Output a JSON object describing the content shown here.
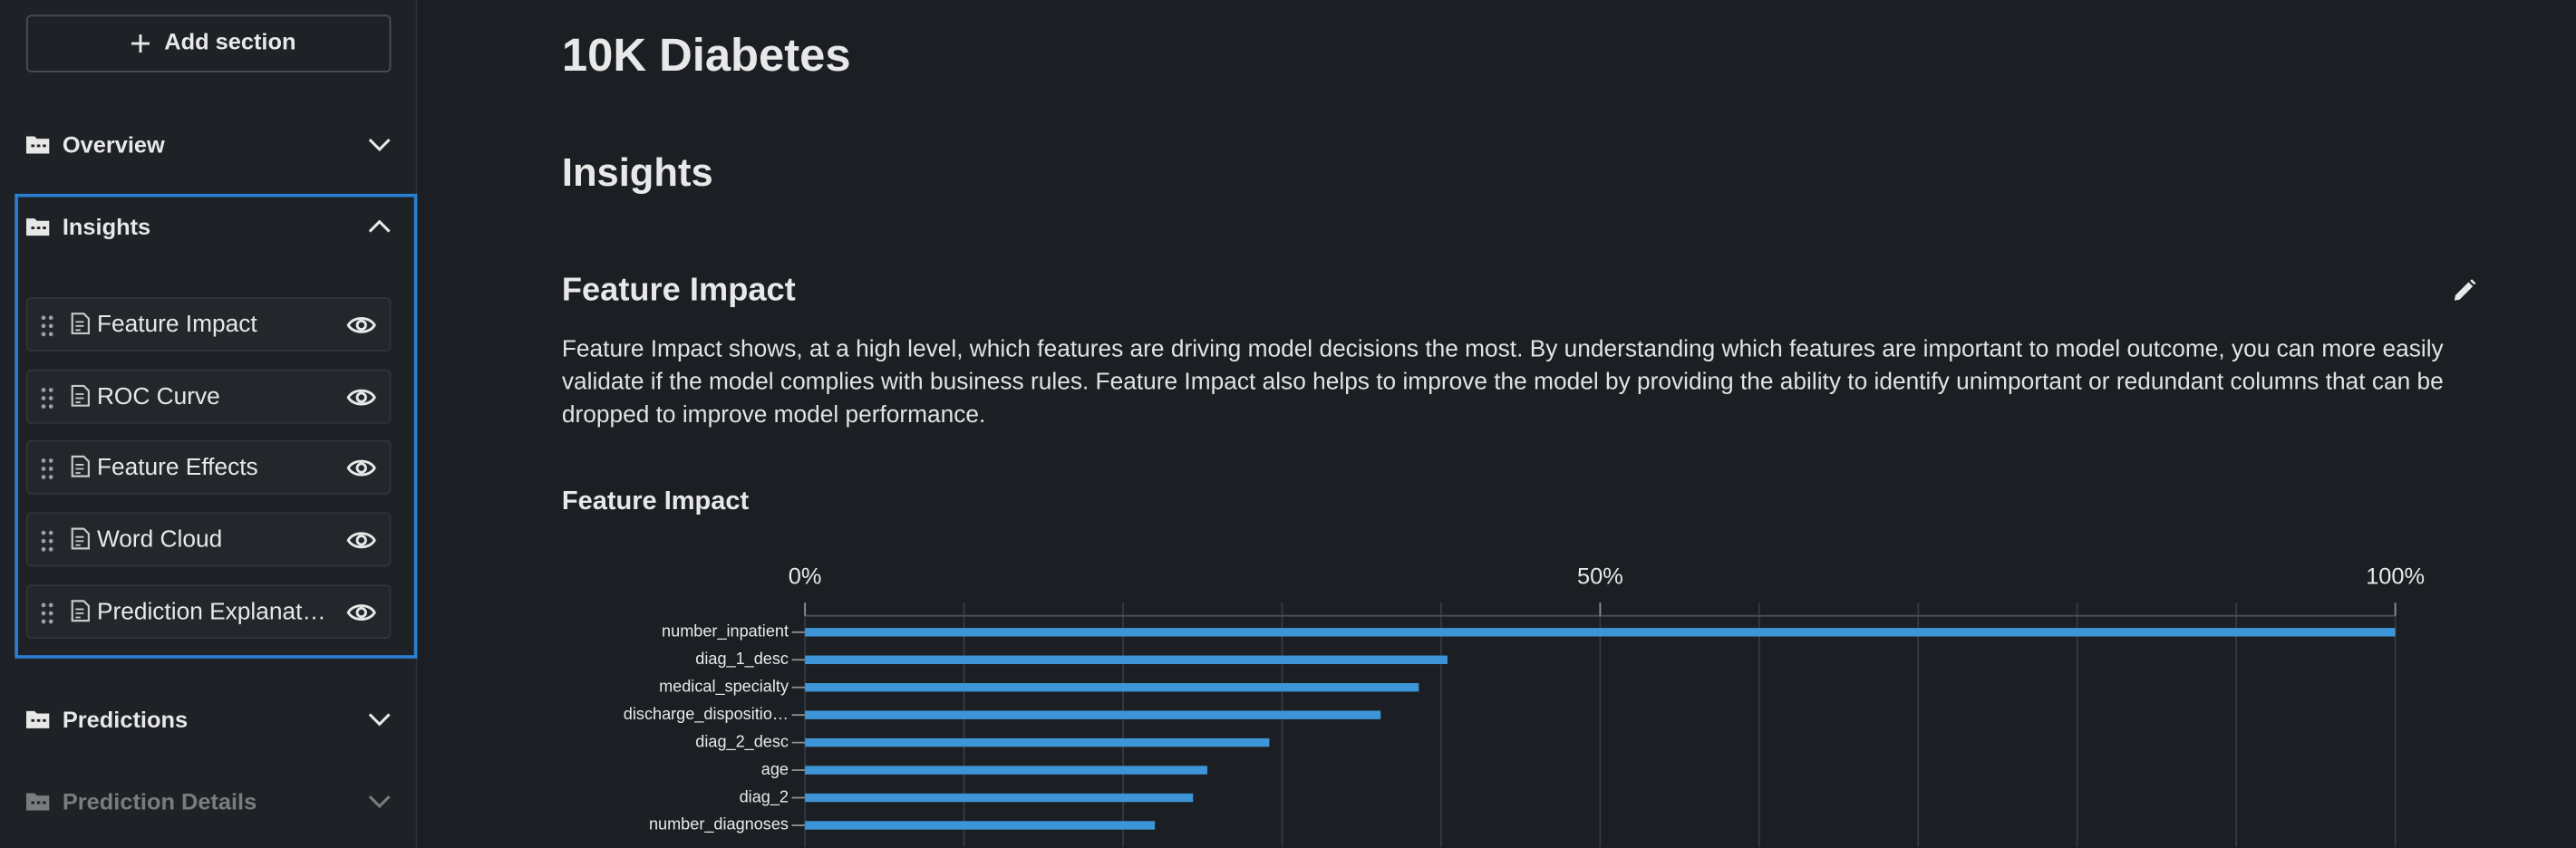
{
  "sidebar": {
    "add_button": "Add section",
    "sections": [
      {
        "label": "Overview"
      },
      {
        "label": "Insights",
        "items": [
          "Feature Impact",
          "ROC Curve",
          "Feature Effects",
          "Word Cloud",
          "Prediction Explanat…"
        ]
      },
      {
        "label": "Predictions"
      },
      {
        "label": "Prediction Details"
      }
    ]
  },
  "header": {
    "title": "10K Diabetes",
    "section": "Insights"
  },
  "block": {
    "title": "Feature Impact",
    "description": "Feature Impact shows, at a high level, which features are driving model decisions the most. By understanding which features are important to model outcome, you can more easily validate if the model complies with business rules. Feature Impact also helps to improve the model by providing the ability to identify unimportant or redundant columns that can be dropped to improve model performance."
  },
  "chart_data": {
    "type": "bar",
    "orientation": "horizontal",
    "title": "Feature Impact",
    "categories": [
      "number_inpatient",
      "diag_1_desc",
      "medical_specialty",
      "discharge_dispositio…",
      "diag_2_desc",
      "age",
      "diag_2",
      "number_diagnoses"
    ],
    "values": [
      100,
      40.4,
      38.6,
      36.2,
      29.2,
      25.3,
      24.4,
      22.0
    ],
    "color": "#3d95d8",
    "xlim": [
      0,
      100
    ],
    "xticks": [
      {
        "value": 0,
        "label": "0%"
      },
      {
        "value": 50,
        "label": "50%"
      },
      {
        "value": 100,
        "label": "100%"
      }
    ],
    "xgrid": [
      0,
      10,
      20,
      30,
      40,
      50,
      60,
      70,
      80,
      90,
      100
    ]
  }
}
